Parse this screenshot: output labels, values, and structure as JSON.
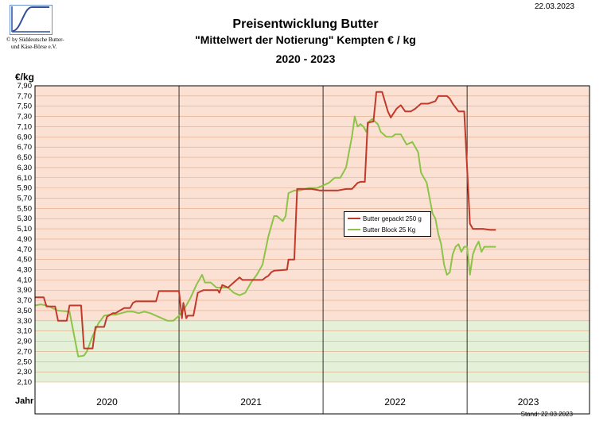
{
  "header": {
    "date": "22.03.2023",
    "copyright_line1": "© by Süddeutsche Butter-",
    "copyright_line2": "und Käse-Börse e.V.",
    "title": "Preisentwicklung Butter",
    "subtitle": "\"Mittelwert der Notierung\" Kempten  € / kg",
    "period": "2020 - 2023"
  },
  "footer": {
    "stand": "Stand: 22.03.2023"
  },
  "chart_data": {
    "type": "line",
    "ylabel": "€/kg",
    "xlabel": "Jahr",
    "ylim": [
      2.1,
      7.9
    ],
    "ytick_step": 0.2,
    "years": [
      "2020",
      "2021",
      "2022",
      "2023"
    ],
    "grid": true,
    "legend_position": "center-right",
    "colors": {
      "upper_band": "#fbe1d4",
      "lower_band": "#e4f1d8",
      "grid": "#e2a884",
      "gepackt": "#c0392b",
      "block": "#8cc348"
    },
    "series": [
      {
        "name": "Butter gepackt 250 g",
        "x": [
          2020.0,
          2020.06,
          2020.08,
          2020.14,
          2020.16,
          2020.22,
          2020.24,
          2020.32,
          2020.34,
          2020.4,
          2020.42,
          2020.44,
          2020.48,
          2020.5,
          2020.54,
          2020.56,
          2020.6,
          2020.62,
          2020.66,
          2020.68,
          2020.7,
          2020.84,
          2020.86,
          2020.98,
          2021.0,
          2021.02,
          2021.03,
          2021.05,
          2021.06,
          2021.08,
          2021.1,
          2021.13,
          2021.17,
          2021.27,
          2021.28,
          2021.3,
          2021.34,
          2021.4,
          2021.42,
          2021.44,
          2021.52,
          2021.56,
          2021.58,
          2021.6,
          2021.62,
          2021.64,
          2021.66,
          2021.75,
          2021.76,
          2021.8,
          2021.82,
          2021.92,
          2021.98,
          2022.0,
          2022.06,
          2022.1,
          2022.16,
          2022.2,
          2022.24,
          2022.26,
          2022.29,
          2022.31,
          2022.35,
          2022.37,
          2022.41,
          2022.45,
          2022.47,
          2022.51,
          2022.54,
          2022.57,
          2022.61,
          2022.64,
          2022.68,
          2022.69,
          2022.73,
          2022.78,
          2022.8,
          2022.82,
          2022.84,
          2022.86,
          2022.88,
          2022.9,
          2022.94,
          2022.98,
          2023.02,
          2023.04,
          2023.06,
          2023.08,
          2023.11,
          2023.16,
          2023.2
        ],
        "values": [
          3.76,
          3.76,
          3.58,
          3.58,
          3.3,
          3.3,
          3.6,
          3.6,
          2.76,
          2.76,
          3.18,
          3.18,
          3.18,
          3.38,
          3.45,
          3.45,
          3.52,
          3.55,
          3.55,
          3.65,
          3.68,
          3.68,
          3.88,
          3.88,
          3.88,
          3.35,
          3.65,
          3.35,
          3.4,
          3.4,
          3.4,
          3.85,
          3.9,
          3.9,
          3.85,
          4.0,
          3.95,
          4.1,
          4.15,
          4.1,
          4.1,
          4.1,
          4.1,
          4.15,
          4.18,
          4.25,
          4.28,
          4.3,
          4.5,
          4.5,
          5.88,
          5.88,
          5.85,
          5.85,
          5.85,
          5.85,
          5.88,
          5.88,
          6.0,
          6.02,
          6.02,
          7.18,
          7.2,
          7.78,
          7.78,
          7.4,
          7.28,
          7.45,
          7.52,
          7.4,
          7.4,
          7.45,
          7.55,
          7.55,
          7.55,
          7.6,
          7.7,
          7.7,
          7.7,
          7.7,
          7.65,
          7.55,
          7.4,
          7.4,
          5.2,
          5.1,
          5.1,
          5.1,
          5.1,
          5.08,
          5.08
        ]
      },
      {
        "name": "Butter Block 25 Kg",
        "x": [
          2020.0,
          2020.04,
          2020.08,
          2020.16,
          2020.24,
          2020.3,
          2020.34,
          2020.36,
          2020.4,
          2020.44,
          2020.48,
          2020.52,
          2020.56,
          2020.6,
          2020.64,
          2020.68,
          2020.72,
          2020.76,
          2020.8,
          2020.84,
          2020.88,
          2020.92,
          2020.96,
          2021.0,
          2021.04,
          2021.08,
          2021.12,
          2021.16,
          2021.18,
          2021.22,
          2021.26,
          2021.3,
          2021.34,
          2021.38,
          2021.42,
          2021.46,
          2021.5,
          2021.54,
          2021.58,
          2021.62,
          2021.66,
          2021.68,
          2021.72,
          2021.74,
          2021.76,
          2021.8,
          2021.84,
          2021.9,
          2021.96,
          2022.0,
          2022.04,
          2022.08,
          2022.12,
          2022.16,
          2022.2,
          2022.22,
          2022.24,
          2022.26,
          2022.28,
          2022.3,
          2022.32,
          2022.34,
          2022.36,
          2022.38,
          2022.4,
          2022.44,
          2022.48,
          2022.5,
          2022.54,
          2022.58,
          2022.62,
          2022.66,
          2022.68,
          2022.72,
          2022.76,
          2022.78,
          2022.8,
          2022.82,
          2022.84,
          2022.86,
          2022.88,
          2022.9,
          2022.92,
          2022.94,
          2022.96,
          2022.98,
          2023.0,
          2023.02,
          2023.04,
          2023.06,
          2023.08,
          2023.1,
          2023.12,
          2023.14,
          2023.16,
          2023.2
        ],
        "values": [
          3.6,
          3.62,
          3.6,
          3.5,
          3.48,
          2.6,
          2.62,
          2.7,
          3.0,
          3.25,
          3.4,
          3.42,
          3.42,
          3.45,
          3.48,
          3.48,
          3.45,
          3.48,
          3.45,
          3.4,
          3.35,
          3.3,
          3.3,
          3.4,
          3.55,
          3.75,
          4.0,
          4.2,
          4.05,
          4.05,
          3.95,
          3.95,
          3.95,
          3.85,
          3.8,
          3.85,
          4.05,
          4.2,
          4.4,
          4.95,
          5.35,
          5.35,
          5.25,
          5.35,
          5.8,
          5.85,
          5.85,
          5.9,
          5.9,
          5.95,
          6.0,
          6.1,
          6.1,
          6.3,
          6.9,
          7.3,
          7.1,
          7.15,
          7.1,
          7.0,
          7.2,
          7.25,
          7.2,
          7.15,
          7.0,
          6.9,
          6.9,
          6.95,
          6.95,
          6.75,
          6.8,
          6.6,
          6.2,
          6.0,
          5.4,
          5.3,
          5.0,
          4.8,
          4.4,
          4.2,
          4.25,
          4.6,
          4.75,
          4.8,
          4.65,
          4.75,
          4.75,
          4.2,
          4.6,
          4.75,
          4.85,
          4.65,
          4.75,
          4.75,
          4.75,
          4.75
        ]
      }
    ]
  }
}
